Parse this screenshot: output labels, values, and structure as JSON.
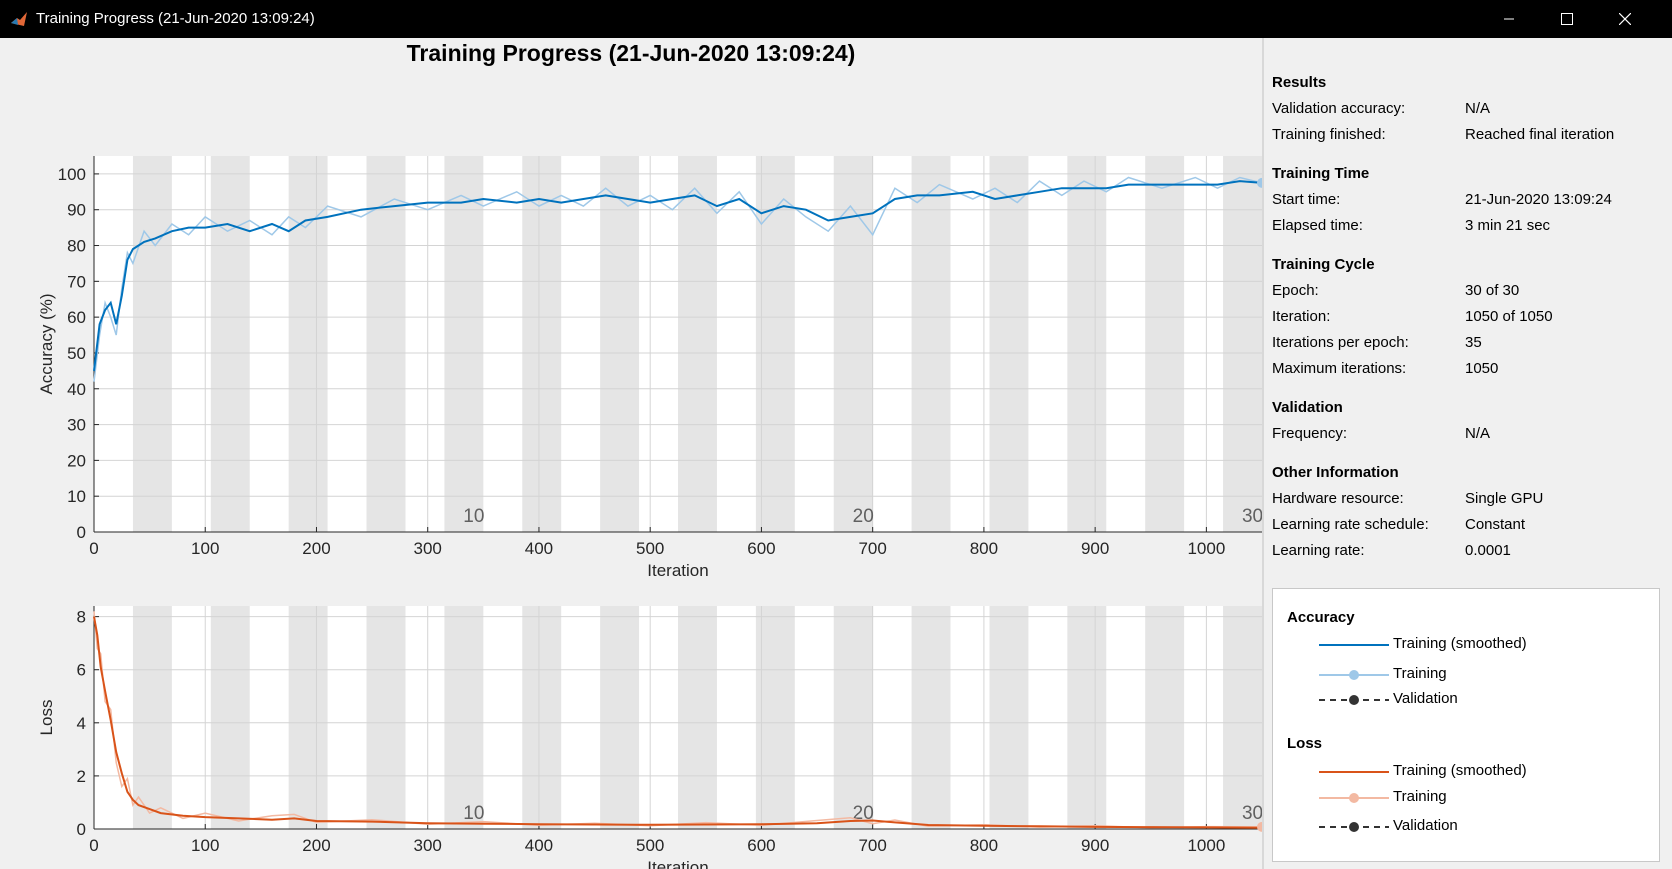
{
  "window": {
    "title": "Training Progress (21-Jun-2020 13:09:24)",
    "controls": [
      "minimize-icon",
      "maximize-icon",
      "close-icon"
    ]
  },
  "main_title": "Training Progress (21-Jun-2020 13:09:24)",
  "colors": {
    "accuracy_smoothed": "#0072bd",
    "accuracy_raw": "#9fc8e8",
    "loss_smoothed": "#d95319",
    "loss_raw": "#f3b9a2",
    "epoch_shade": "#e5e5e5",
    "validation": "#333333"
  },
  "chart_data": [
    {
      "type": "line",
      "name": "accuracy",
      "xlabel": "Iteration",
      "ylabel": "Accuracy (%)",
      "xlim": [
        0,
        1050
      ],
      "ylim": [
        0,
        105
      ],
      "xticks": [
        0,
        100,
        200,
        300,
        400,
        500,
        600,
        700,
        800,
        900,
        1000
      ],
      "yticks": [
        0,
        10,
        20,
        30,
        40,
        50,
        60,
        70,
        80,
        90,
        100
      ],
      "epoch_labels": [
        {
          "epoch": 10,
          "x": 332
        },
        {
          "epoch": 20,
          "x": 682
        },
        {
          "epoch": 30,
          "x": 1032
        }
      ],
      "grid": true,
      "iterations_per_epoch": 35,
      "series": [
        {
          "name": "Training (smoothed)",
          "x": [
            0,
            5,
            10,
            15,
            20,
            25,
            30,
            35,
            45,
            55,
            70,
            85,
            100,
            120,
            140,
            160,
            175,
            190,
            210,
            240,
            270,
            300,
            330,
            350,
            380,
            400,
            420,
            440,
            460,
            480,
            500,
            520,
            540,
            560,
            580,
            600,
            620,
            640,
            660,
            680,
            700,
            720,
            740,
            760,
            790,
            810,
            830,
            850,
            870,
            890,
            910,
            930,
            960,
            990,
            1010,
            1030,
            1050
          ],
          "y": [
            45,
            58,
            62,
            64,
            58,
            66,
            76,
            79,
            81,
            82,
            84,
            85,
            85,
            86,
            84,
            86,
            84,
            87,
            88,
            90,
            91,
            92,
            92,
            93,
            92,
            93,
            92,
            93,
            94,
            93,
            92,
            93,
            94,
            91,
            93,
            89,
            91,
            90,
            87,
            88,
            89,
            93,
            94,
            94,
            95,
            93,
            94,
            95,
            96,
            96,
            96,
            97,
            97,
            97,
            97,
            98,
            97.5
          ]
        },
        {
          "name": "Training",
          "x": [
            0,
            5,
            10,
            15,
            20,
            25,
            30,
            35,
            45,
            55,
            70,
            85,
            100,
            120,
            140,
            160,
            175,
            190,
            210,
            240,
            270,
            300,
            330,
            350,
            380,
            400,
            420,
            440,
            460,
            480,
            500,
            520,
            540,
            560,
            580,
            600,
            620,
            640,
            660,
            680,
            700,
            720,
            740,
            760,
            790,
            810,
            830,
            850,
            870,
            890,
            910,
            930,
            960,
            990,
            1010,
            1030,
            1050
          ],
          "y": [
            42,
            55,
            64,
            60,
            55,
            68,
            78,
            75,
            84,
            80,
            86,
            83,
            88,
            84,
            87,
            83,
            88,
            85,
            91,
            88,
            93,
            90,
            94,
            91,
            95,
            91,
            94,
            91,
            96,
            91,
            94,
            90,
            96,
            89,
            95,
            86,
            93,
            88,
            84,
            91,
            83,
            96,
            92,
            97,
            93,
            96,
            92,
            98,
            94,
            98,
            95,
            99,
            96,
            99,
            96,
            99,
            97.5
          ]
        }
      ]
    },
    {
      "type": "line",
      "name": "loss",
      "xlabel": "Iteration",
      "ylabel": "Loss",
      "xlim": [
        0,
        1050
      ],
      "ylim": [
        0,
        8.4
      ],
      "xticks": [
        0,
        100,
        200,
        300,
        400,
        500,
        600,
        700,
        800,
        900,
        1000
      ],
      "yticks": [
        0,
        2,
        4,
        6,
        8
      ],
      "epoch_labels": [
        {
          "epoch": 10,
          "x": 332
        },
        {
          "epoch": 20,
          "x": 682
        },
        {
          "epoch": 30,
          "x": 1032
        }
      ],
      "grid": true,
      "series": [
        {
          "name": "Training (smoothed)",
          "x": [
            0,
            3,
            6,
            10,
            15,
            20,
            25,
            30,
            35,
            40,
            50,
            60,
            80,
            100,
            130,
            160,
            180,
            200,
            250,
            300,
            350,
            400,
            450,
            500,
            550,
            600,
            650,
            680,
            700,
            720,
            750,
            800,
            850,
            900,
            950,
            1000,
            1050
          ],
          "y": [
            8.0,
            7.3,
            6.1,
            5.2,
            4.1,
            2.9,
            2.1,
            1.4,
            1.1,
            0.9,
            0.75,
            0.6,
            0.5,
            0.45,
            0.4,
            0.35,
            0.4,
            0.3,
            0.28,
            0.22,
            0.2,
            0.18,
            0.17,
            0.16,
            0.17,
            0.18,
            0.22,
            0.3,
            0.32,
            0.25,
            0.15,
            0.12,
            0.1,
            0.08,
            0.07,
            0.06,
            0.05
          ]
        },
        {
          "name": "Training",
          "x": [
            0,
            3,
            6,
            10,
            15,
            20,
            25,
            30,
            35,
            40,
            50,
            60,
            80,
            100,
            130,
            160,
            180,
            200,
            250,
            300,
            350,
            400,
            450,
            500,
            550,
            600,
            650,
            680,
            700,
            720,
            750,
            800,
            850,
            900,
            950,
            1000,
            1050
          ],
          "y": [
            8.2,
            6.8,
            6.6,
            4.8,
            4.5,
            2.5,
            1.6,
            1.9,
            0.9,
            1.2,
            0.6,
            0.8,
            0.4,
            0.6,
            0.3,
            0.5,
            0.55,
            0.25,
            0.35,
            0.18,
            0.28,
            0.14,
            0.22,
            0.12,
            0.24,
            0.14,
            0.32,
            0.42,
            0.2,
            0.34,
            0.1,
            0.16,
            0.07,
            0.12,
            0.05,
            0.09,
            0.08
          ]
        }
      ]
    }
  ],
  "info": {
    "results": {
      "heading": "Results",
      "rows": [
        {
          "label": "Validation accuracy:",
          "value": "N/A"
        },
        {
          "label": "Training finished:",
          "value": "Reached final iteration"
        }
      ]
    },
    "training_time": {
      "heading": "Training Time",
      "rows": [
        {
          "label": "Start time:",
          "value": "21-Jun-2020 13:09:24"
        },
        {
          "label": "Elapsed time:",
          "value": "3 min 21 sec"
        }
      ]
    },
    "training_cycle": {
      "heading": "Training Cycle",
      "rows": [
        {
          "label": "Epoch:",
          "value": "30 of 30"
        },
        {
          "label": "Iteration:",
          "value": "1050 of 1050"
        },
        {
          "label": "Iterations per epoch:",
          "value": "35"
        },
        {
          "label": "Maximum iterations:",
          "value": "1050"
        }
      ]
    },
    "validation": {
      "heading": "Validation",
      "rows": [
        {
          "label": "Frequency:",
          "value": "N/A"
        }
      ]
    },
    "other": {
      "heading": "Other Information",
      "rows": [
        {
          "label": "Hardware resource:",
          "value": "Single GPU"
        },
        {
          "label": "Learning rate schedule:",
          "value": "Constant"
        },
        {
          "label": "Learning rate:",
          "value": "0.0001"
        }
      ]
    }
  },
  "legend": {
    "accuracy": {
      "heading": "Accuracy",
      "items": [
        "Training (smoothed)",
        "Training",
        "Validation"
      ]
    },
    "loss": {
      "heading": "Loss",
      "items": [
        "Training (smoothed)",
        "Training",
        "Validation"
      ]
    }
  }
}
